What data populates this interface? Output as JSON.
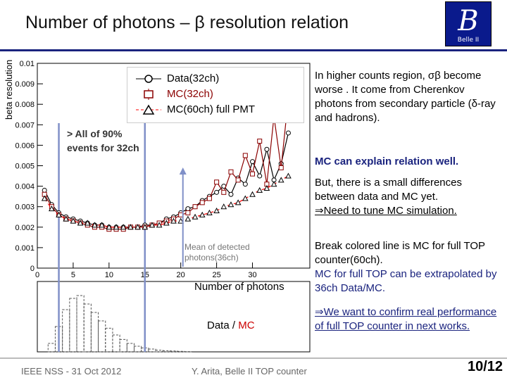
{
  "slide": {
    "title": "Number of photons – β resolution  relation",
    "logo_text": "Belle II",
    "logo_letter": "B",
    "footer_left": "IEEE NSS - 31 Oct 2012",
    "footer_center": "Y. Arita, Belle II TOP counter",
    "page_number": "10/12"
  },
  "legend": {
    "data": "Data(32ch)",
    "mc32": "MC(32ch)",
    "mc60": "MC(60ch) full PMT"
  },
  "annotations": {
    "coverage_line1": "> All of 90%",
    "coverage_line2": "events for 32ch",
    "mean_line1": "Mean of detected",
    "mean_line2": "photons(36ch)",
    "xaxis_title": "Number of photons",
    "hist_label_data": "Data",
    "hist_label_sep": " / ",
    "hist_label_mc": "MC"
  },
  "right_text": {
    "p1": "In higher counts region, σβ become worse . It come from Cherenkov photons from secondary particle (δ-ray and hadrons).",
    "p2": "MC can explain relation well.",
    "p3a": "But, there is a small differences between data and MC yet.",
    "p3b": "⇒Need to tune MC simulation.",
    "p4a": "Break colored line is MC for full TOP counter(60ch).",
    "p4b": "MC for full TOP can be extrapolated by 36ch Data/MC.",
    "p5": "⇒We want to confirm real performance of full TOP counter in next works."
  },
  "colors": {
    "data": "#000000",
    "mc32": "#8b0000",
    "mc60": "#ff0000",
    "band": "#8090c8",
    "logo": "#0a1a8c"
  },
  "chart_data": {
    "type": "line",
    "ylabel": "beta resolution",
    "xlabel": "",
    "xlim": [
      0,
      38
    ],
    "ylim": [
      0,
      0.01
    ],
    "xticks": [
      "0",
      "5",
      "10",
      "15",
      "20",
      "25",
      "30"
    ],
    "yticks": [
      "0",
      "0.001",
      "0.002",
      "0.003",
      "0.004",
      "0.005",
      "0.006",
      "0.007",
      "0.008",
      "0.009",
      "0.01"
    ],
    "series": [
      {
        "name": "Data(32ch)",
        "x": [
          1,
          2,
          3,
          4,
          5,
          6,
          7,
          8,
          9,
          10,
          11,
          12,
          13,
          14,
          15,
          16,
          17,
          18,
          19,
          20,
          21,
          22,
          23,
          24,
          25,
          26,
          27,
          28,
          29,
          30,
          31,
          32,
          33,
          34,
          35
        ],
        "values": [
          0.0038,
          0.0031,
          0.0027,
          0.0025,
          0.0024,
          0.0023,
          0.0022,
          0.0021,
          0.0021,
          0.002,
          0.002,
          0.002,
          0.002,
          0.002,
          0.0021,
          0.0021,
          0.0022,
          0.0024,
          0.0025,
          0.0027,
          0.0029,
          0.003,
          0.0033,
          0.0035,
          0.0037,
          0.004,
          0.0036,
          0.0044,
          0.0041,
          0.0052,
          0.0045,
          0.0058,
          0.0043,
          0.0051,
          0.0066
        ]
      },
      {
        "name": "MC(32ch)",
        "x": [
          1,
          2,
          3,
          4,
          5,
          6,
          7,
          8,
          9,
          10,
          11,
          12,
          13,
          14,
          15,
          16,
          17,
          18,
          19,
          20,
          21,
          22,
          23,
          24,
          25,
          26,
          27,
          28,
          29,
          30,
          31,
          32,
          33,
          34,
          35
        ],
        "values": [
          0.0036,
          0.003,
          0.0026,
          0.0024,
          0.0023,
          0.0022,
          0.0021,
          0.002,
          0.002,
          0.0019,
          0.0019,
          0.0019,
          0.002,
          0.002,
          0.002,
          0.0021,
          0.0022,
          0.0023,
          0.0024,
          0.0026,
          0.0027,
          0.003,
          0.0032,
          0.0034,
          0.0042,
          0.0037,
          0.0047,
          0.0043,
          0.0055,
          0.0046,
          0.0062,
          0.0041,
          0.0074,
          0.0049,
          0.0083
        ]
      },
      {
        "name": "MC(60ch) full PMT",
        "x": [
          1,
          2,
          3,
          4,
          5,
          6,
          7,
          8,
          9,
          10,
          11,
          12,
          13,
          14,
          15,
          16,
          17,
          18,
          19,
          20,
          21,
          22,
          23,
          24,
          25,
          26,
          27,
          28,
          29,
          30,
          31,
          32,
          33,
          34,
          35
        ],
        "values": [
          0.0034,
          0.0029,
          0.0026,
          0.0024,
          0.0023,
          0.0022,
          0.0022,
          0.0021,
          0.0021,
          0.002,
          0.002,
          0.002,
          0.002,
          0.002,
          0.002,
          0.0021,
          0.0021,
          0.0022,
          0.0023,
          0.0023,
          0.0024,
          0.0025,
          0.0026,
          0.0027,
          0.0028,
          0.003,
          0.0031,
          0.0032,
          0.0034,
          0.0036,
          0.0038,
          0.0039,
          0.0041,
          0.0043,
          0.0045
        ]
      }
    ],
    "band_x": [
      3,
      15
    ],
    "histogram": {
      "type": "bar",
      "x": [
        2,
        3,
        4,
        5,
        6,
        7,
        8,
        9,
        10,
        11,
        12,
        13,
        14,
        15,
        16,
        17,
        18,
        19,
        20,
        21
      ],
      "values": [
        0.15,
        0.45,
        0.75,
        0.95,
        1.0,
        0.85,
        0.7,
        0.55,
        0.42,
        0.3,
        0.22,
        0.15,
        0.1,
        0.07,
        0.05,
        0.03,
        0.02,
        0.015,
        0.01,
        0.005
      ]
    }
  }
}
